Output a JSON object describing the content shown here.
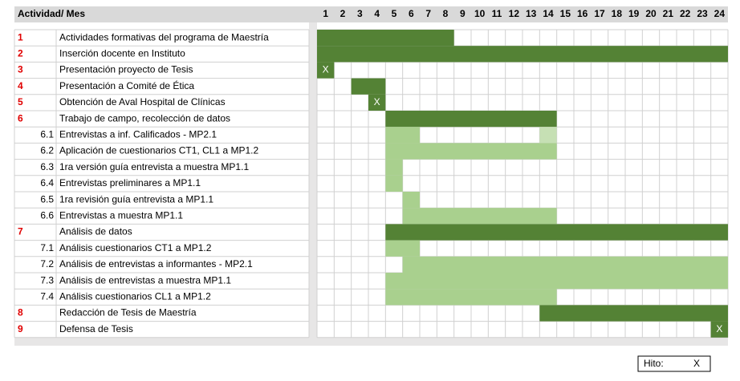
{
  "header": {
    "title": "Actividad/ Mes",
    "months": [
      1,
      2,
      3,
      4,
      5,
      6,
      7,
      8,
      9,
      10,
      11,
      12,
      13,
      14,
      15,
      16,
      17,
      18,
      19,
      20,
      21,
      22,
      23,
      24
    ]
  },
  "rows": [
    {
      "id": "1",
      "label": "Actividades formativas del programa de Maestría",
      "segments": [
        {
          "start": 1,
          "end": 8,
          "color": "#548235"
        }
      ]
    },
    {
      "id": "2",
      "label": "Inserción docente en Instituto",
      "segments": [
        {
          "start": 1,
          "end": 24,
          "color": "#548235"
        }
      ]
    },
    {
      "id": "3",
      "label": "Presentación proyecto de Tesis",
      "segments": [
        {
          "start": 1,
          "end": 1,
          "color": "#548235"
        }
      ],
      "mark": "X"
    },
    {
      "id": "4",
      "label": "Presentación a Comité de Ética",
      "segments": [
        {
          "start": 3,
          "end": 4,
          "color": "#548235"
        }
      ]
    },
    {
      "id": "5",
      "label": "Obtención de Aval Hospital de Clínicas",
      "segments": [
        {
          "start": 4,
          "end": 4,
          "color": "#548235"
        }
      ],
      "mark": "X"
    },
    {
      "id": "6",
      "label": "Trabajo de campo, recolección de datos",
      "segments": [
        {
          "start": 5,
          "end": 14,
          "color": "#548235"
        }
      ]
    },
    {
      "id": "6.1",
      "label": "Entrevistas a inf. Calificados - MP2.1",
      "segments": [
        {
          "start": 5,
          "end": 6,
          "color": "#a9d08e"
        },
        {
          "start": 14,
          "end": 14,
          "color": "#c6e0b4"
        }
      ]
    },
    {
      "id": "6.2",
      "label": "Aplicación de cuestionarios CT1, CL1 a MP1.2",
      "segments": [
        {
          "start": 5,
          "end": 14,
          "color": "#a9d08e"
        }
      ]
    },
    {
      "id": "6.3",
      "label": "1ra versión guía entrevista a muestra MP1.1",
      "segments": [
        {
          "start": 5,
          "end": 5,
          "color": "#a9d08e"
        }
      ]
    },
    {
      "id": "6.4",
      "label": "Entrevistas preliminares a MP1.1",
      "segments": [
        {
          "start": 5,
          "end": 5,
          "color": "#a9d08e"
        }
      ]
    },
    {
      "id": "6.5",
      "label": "1ra revisión guía entrevista a MP1.1",
      "segments": [
        {
          "start": 6,
          "end": 6,
          "color": "#a9d08e"
        }
      ]
    },
    {
      "id": "6.6",
      "label": "Entrevistas a muestra MP1.1",
      "segments": [
        {
          "start": 6,
          "end": 14,
          "color": "#a9d08e"
        }
      ]
    },
    {
      "id": "7",
      "label": "Análisis de datos",
      "segments": [
        {
          "start": 5,
          "end": 24,
          "color": "#548235"
        }
      ]
    },
    {
      "id": "7.1",
      "label": "Análisis cuestionarios CT1 a MP1.2",
      "segments": [
        {
          "start": 5,
          "end": 6,
          "color": "#a9d08e"
        }
      ]
    },
    {
      "id": "7.2",
      "label": "Análisis de entrevistas a informantes - MP2.1",
      "segments": [
        {
          "start": 6,
          "end": 24,
          "color": "#a9d08e"
        }
      ]
    },
    {
      "id": "7.3",
      "label": "Análisis de entrevistas a muestra MP1.1",
      "segments": [
        {
          "start": 5,
          "end": 24,
          "color": "#a9d08e"
        }
      ]
    },
    {
      "id": "7.4",
      "label": "Análisis cuestionarios CL1 a MP1.2",
      "segments": [
        {
          "start": 5,
          "end": 14,
          "color": "#a9d08e"
        }
      ]
    },
    {
      "id": "8",
      "label": "Redacción de Tesis de Maestría",
      "segments": [
        {
          "start": 14,
          "end": 24,
          "color": "#548235"
        }
      ]
    },
    {
      "id": "9",
      "label": "Defensa de Tesis",
      "segments": [
        {
          "start": 24,
          "end": 24,
          "color": "#548235"
        }
      ],
      "mark": "X"
    }
  ],
  "legend": {
    "label": "Hito:",
    "mark": "X"
  }
}
